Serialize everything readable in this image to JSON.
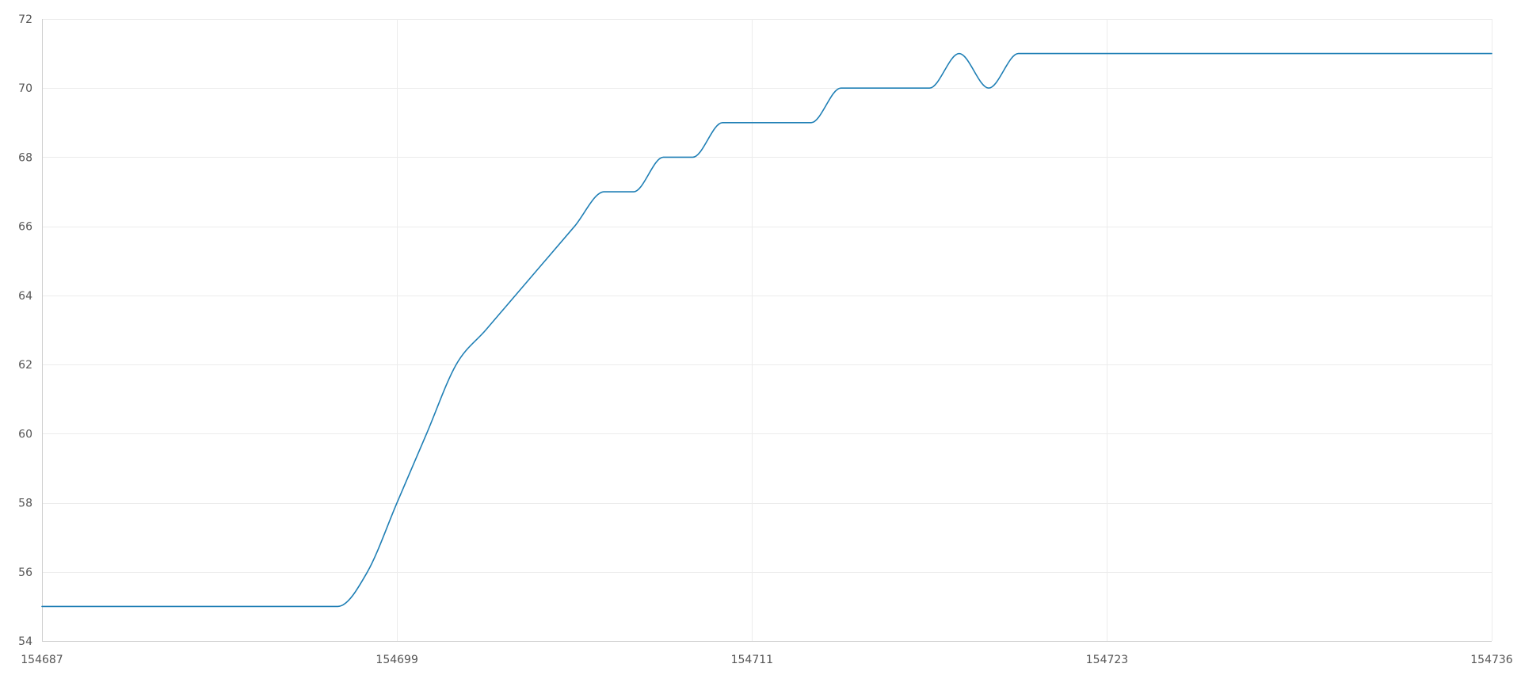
{
  "chart_data": {
    "type": "line",
    "title": "",
    "xlabel": "",
    "ylabel": "",
    "xlim": [
      154687,
      154736
    ],
    "ylim": [
      54,
      72
    ],
    "x_ticks": [
      154687,
      154699,
      154711,
      154723,
      154736
    ],
    "y_ticks": [
      54,
      56,
      58,
      60,
      62,
      64,
      66,
      68,
      70,
      72
    ],
    "grid": true,
    "legend": "none",
    "colors": {
      "line": "#1f7fb5",
      "grid": "#ececec",
      "axis": "#cfcfcf",
      "tick_text": "#555555"
    },
    "series": [
      {
        "x": [
          154687,
          154688,
          154689,
          154690,
          154691,
          154692,
          154693,
          154694,
          154695,
          154696,
          154697,
          154698,
          154699,
          154700,
          154701,
          154702,
          154703,
          154704,
          154705,
          154706,
          154707,
          154708,
          154709,
          154710,
          154711,
          154712,
          154713,
          154714,
          154715,
          154716,
          154717,
          154718,
          154719,
          154720,
          154721,
          154722,
          154723,
          154724,
          154725,
          154726,
          154727,
          154728,
          154729,
          154730,
          154731,
          154732,
          154733,
          154734,
          154735,
          154736
        ],
        "values": [
          55,
          55,
          55,
          55,
          55,
          55,
          55,
          55,
          55,
          55,
          55,
          56,
          58,
          60,
          62,
          63,
          64,
          65,
          66,
          67,
          67,
          68,
          68,
          69,
          69,
          69,
          69,
          70,
          70,
          70,
          70,
          71,
          70,
          71,
          71,
          71,
          71,
          71,
          71,
          71,
          71,
          71,
          71,
          71,
          71,
          71,
          71,
          71,
          71,
          71
        ]
      }
    ]
  }
}
